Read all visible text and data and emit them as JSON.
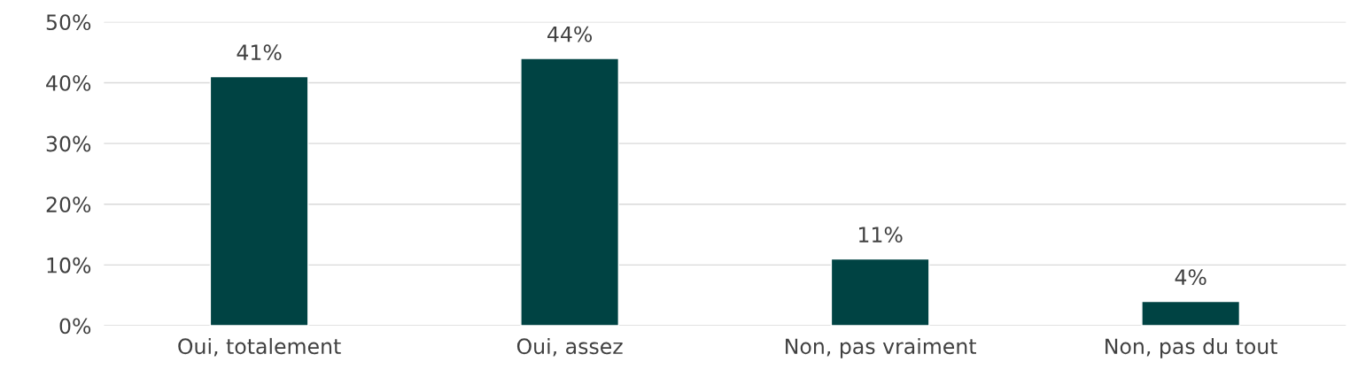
{
  "chart_data": {
    "type": "bar",
    "categories": [
      "Oui, totalement",
      "Oui, assez",
      "Non, pas vraiment",
      "Non, pas du tout"
    ],
    "values": [
      41,
      44,
      11,
      4
    ],
    "value_labels": [
      "41%",
      "44%",
      "11%",
      "4%"
    ],
    "color": "#004343",
    "ylim": [
      0,
      50
    ],
    "yticks": [
      {
        "value": 0,
        "label": "0%"
      },
      {
        "value": 10,
        "label": "10%"
      },
      {
        "value": 20,
        "label": "20%"
      },
      {
        "value": 30,
        "label": "30%"
      },
      {
        "value": 40,
        "label": "40%"
      },
      {
        "value": 50,
        "label": "50%"
      }
    ],
    "grid": "y"
  }
}
